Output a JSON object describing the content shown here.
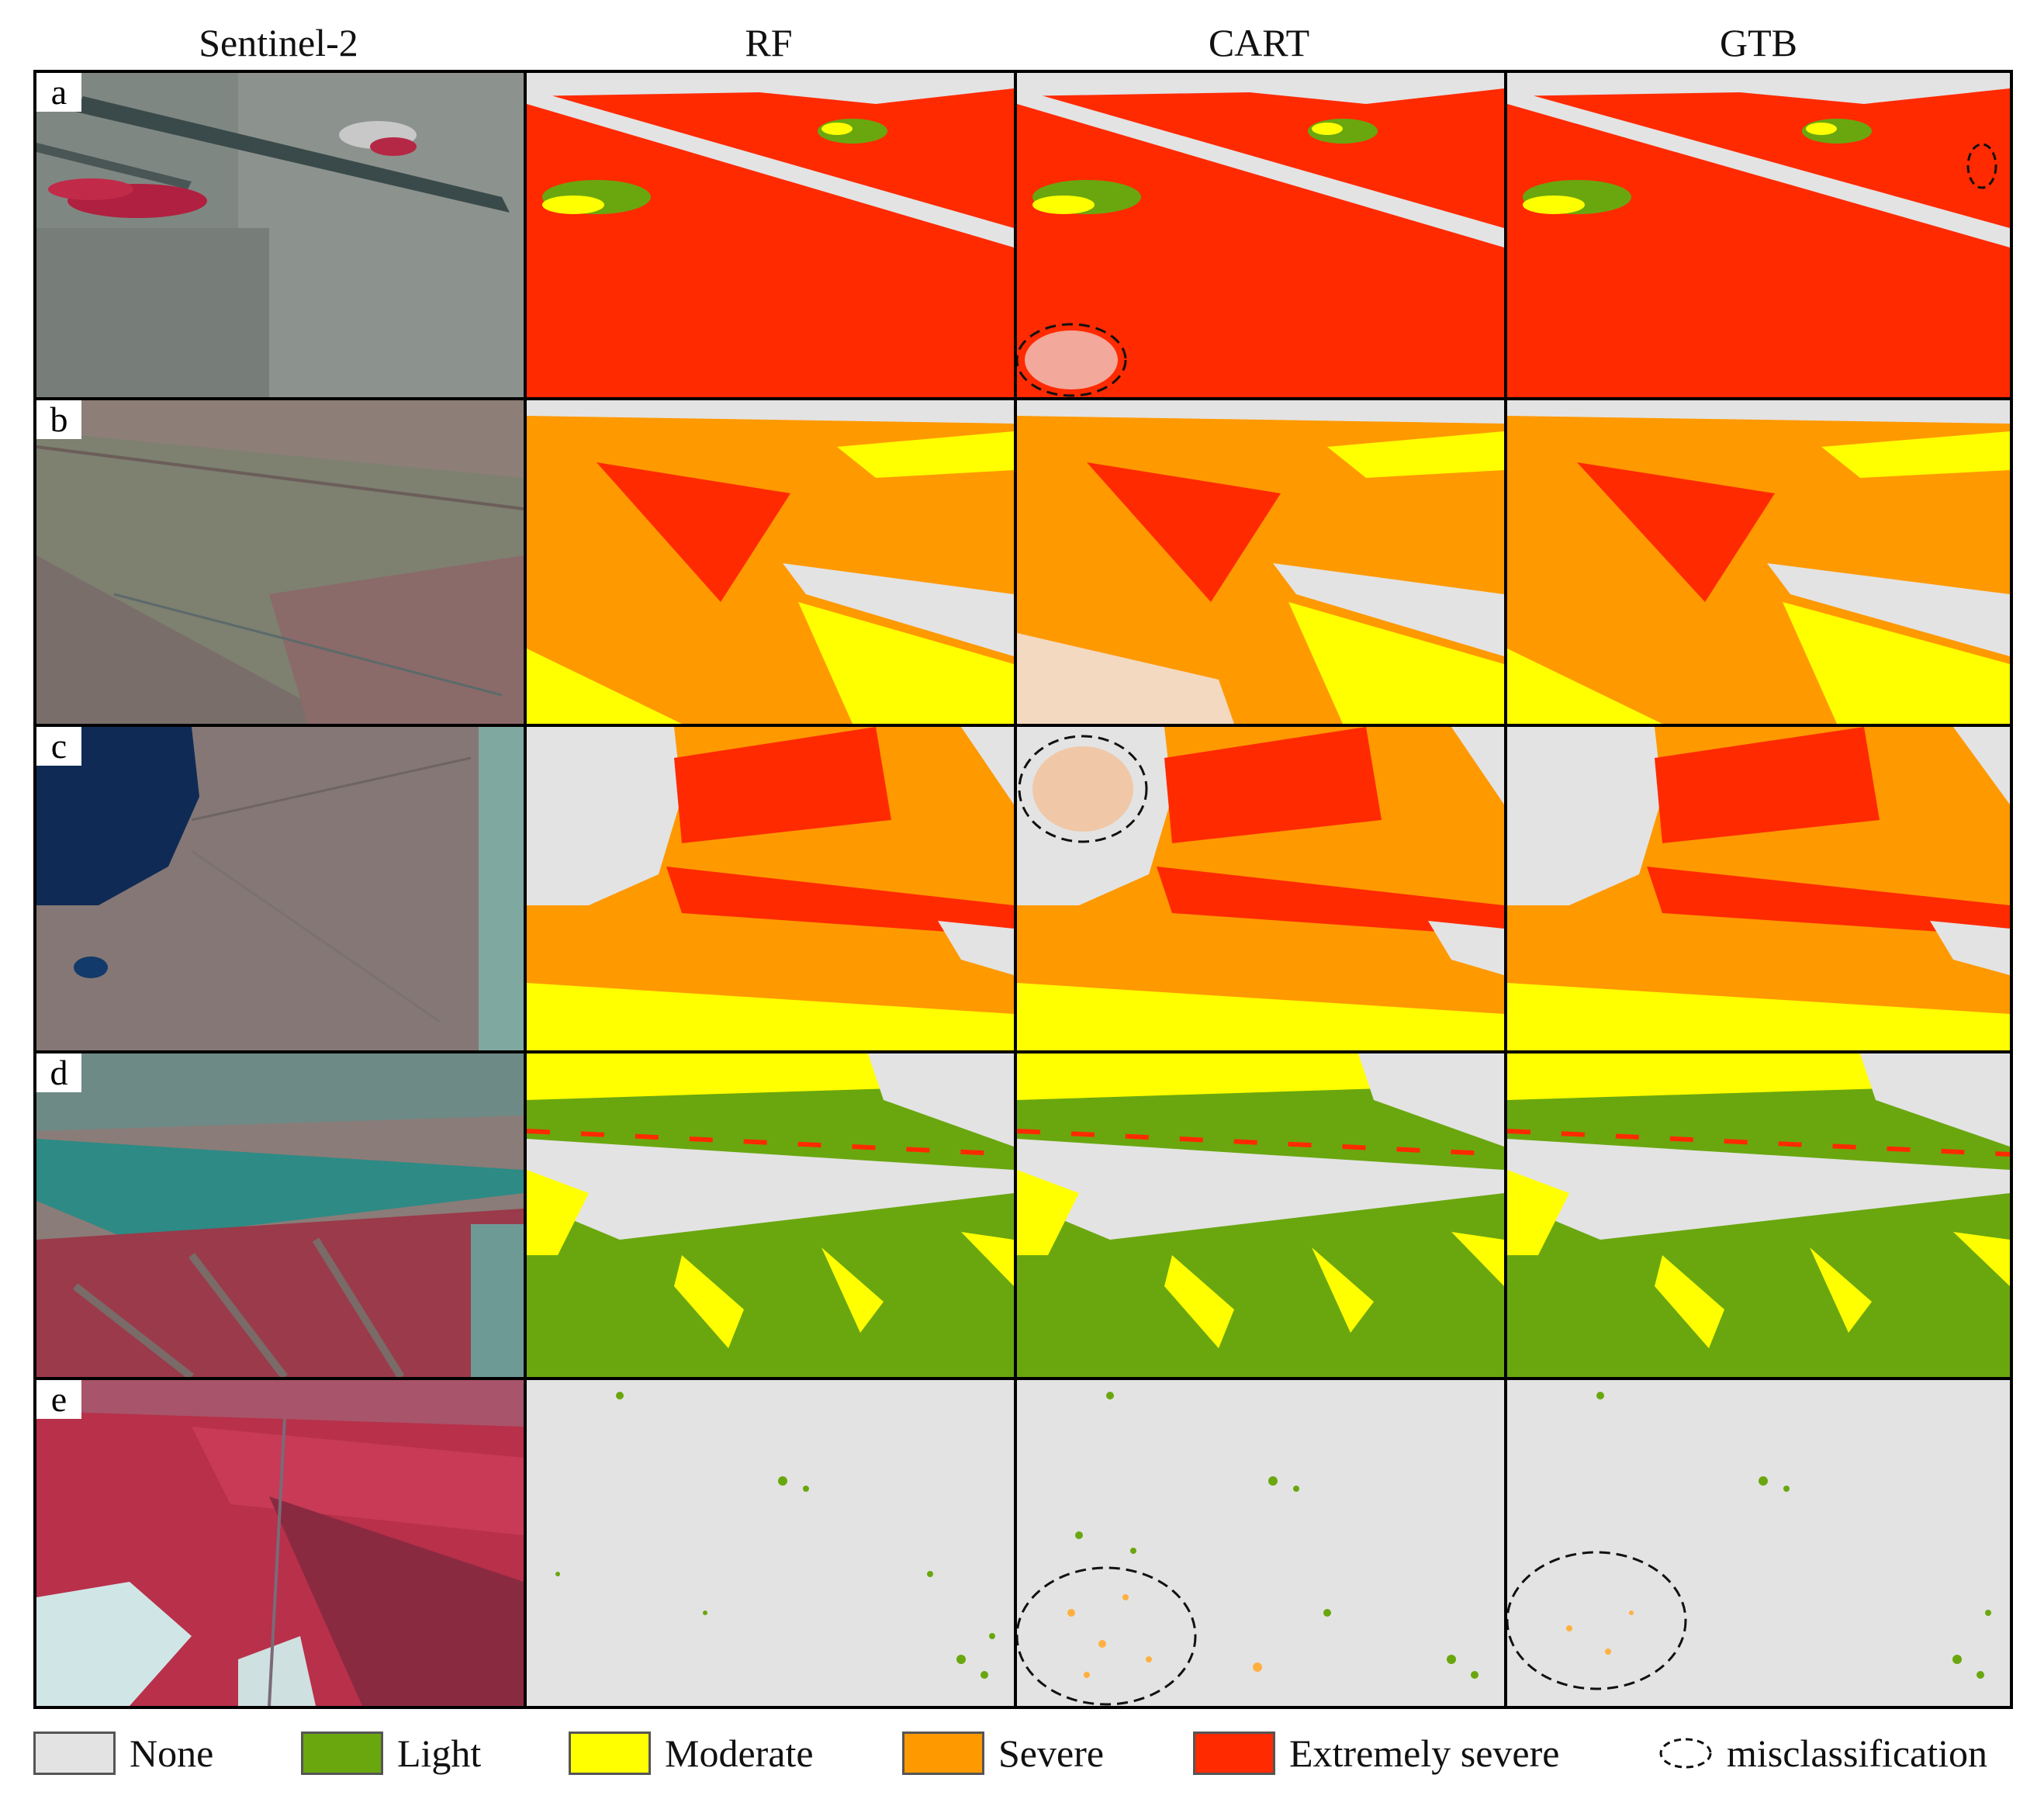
{
  "columns": [
    "Sentinel-2",
    "RF",
    "CART",
    "GTB"
  ],
  "rows": [
    "a",
    "b",
    "c",
    "d",
    "e"
  ],
  "colors": {
    "none": "#e3e3e3",
    "light": "#6aa70f",
    "moderate": "#ffff00",
    "severe": "#ff9900",
    "extremely_severe": "#ff2a00"
  },
  "legend": [
    {
      "label": "None",
      "color": "#e3e3e3"
    },
    {
      "label": "Light",
      "color": "#6aa70f"
    },
    {
      "label": "Moderate",
      "color": "#ffff00"
    },
    {
      "label": "Severe",
      "color": "#ff9900"
    },
    {
      "label": "Extremely severe",
      "color": "#ff2a00"
    }
  ],
  "misclassification_label": "misclassification"
}
